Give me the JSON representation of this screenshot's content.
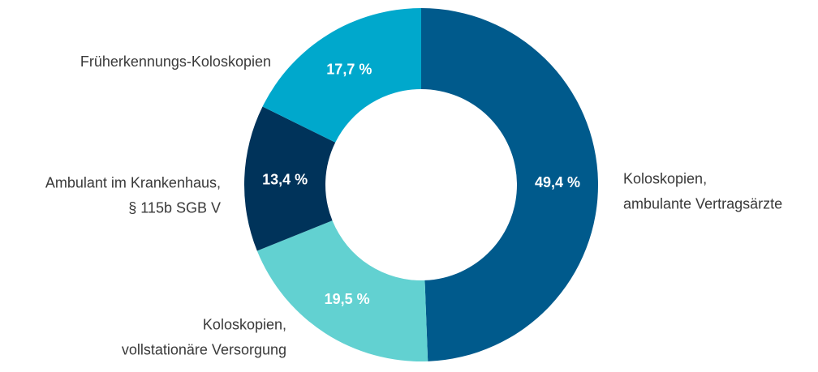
{
  "chart_data": {
    "type": "pie",
    "variant": "donut",
    "slices": [
      {
        "label_lines": [
          "Koloskopien,",
          "ambulante Vertragsärzte"
        ],
        "value": 49.4,
        "value_label": "49,4 %",
        "color": "#005a8c",
        "label_side": "right"
      },
      {
        "label_lines": [
          "Koloskopien,",
          "vollstationäre Versorgung"
        ],
        "value": 19.5,
        "value_label": "19,5 %",
        "color": "#62d1d1",
        "label_side": "left"
      },
      {
        "label_lines": [
          "Ambulant im Krankenhaus,",
          "§ 115b SGB V"
        ],
        "value": 13.4,
        "value_label": "13,4 %",
        "color": "#00335a",
        "label_side": "left"
      },
      {
        "label_lines": [
          "Früherkennungs-Koloskopien"
        ],
        "value": 17.7,
        "value_label": "17,7 %",
        "color": "#00a8cc",
        "label_side": "left"
      }
    ],
    "start_angle_deg": 0,
    "direction": "clockwise",
    "legend": "none (direct labels)"
  }
}
